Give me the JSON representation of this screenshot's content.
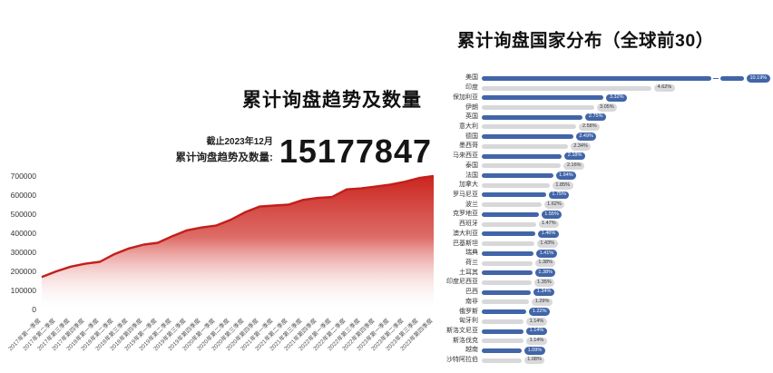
{
  "colors": {
    "bar_blue": "#4165a8",
    "bar_gray": "#d8d8da",
    "badge_gray_bg": "#d9d9db",
    "badge_gray_text": "#333333",
    "area_red": "#cb241f",
    "area_red_line": "#c21f1a"
  },
  "chart_data": [
    {
      "type": "area",
      "title": "累计询盘趋势及数量",
      "annotations": {
        "asof": "截止2023年12月",
        "total_label": "累计询盘趋势及数量:",
        "total_value": "15177847"
      },
      "x": [
        "2017年第一季度",
        "2017年第二季度",
        "2017年第三季度",
        "2017年第四季度",
        "2018年第一季度",
        "2018年第二季度",
        "2018年第三季度",
        "2018年第四季度",
        "2019年第一季度",
        "2019年第二季度",
        "2019年第三季度",
        "2019年第四季度",
        "2020年第一季度",
        "2020年第二季度",
        "2020年第三季度",
        "2020年第四季度",
        "2021年第一季度",
        "2021年第二季度",
        "2021年第三季度",
        "2021年第四季度",
        "2022年第一季度",
        "2022年第二季度",
        "2022年第三季度",
        "2022年第四季度",
        "2023年第一季度",
        "2023年第二季度",
        "2023年第三季度",
        "2023年第四季度"
      ],
      "values": [
        170000,
        200000,
        225000,
        240000,
        250000,
        290000,
        320000,
        340000,
        350000,
        385000,
        415000,
        430000,
        440000,
        470000,
        510000,
        540000,
        545000,
        550000,
        575000,
        585000,
        590000,
        630000,
        635000,
        645000,
        655000,
        670000,
        690000,
        700000
      ],
      "ylim": [
        0,
        700000
      ],
      "yticks": [
        700000,
        600000,
        500000,
        400000,
        300000,
        200000,
        100000,
        0
      ],
      "grid": false,
      "legend": "none"
    },
    {
      "type": "bar",
      "orientation": "horizontal",
      "title": "累计询盘国家分布（全球前30）",
      "unit": "%",
      "categories": [
        "美国",
        "印度",
        "保加利亚",
        "伊朗",
        "英国",
        "意大利",
        "德国",
        "墨西哥",
        "马来西亚",
        "泰国",
        "法国",
        "加拿大",
        "罗马尼亚",
        "波兰",
        "克罗地亚",
        "西班牙",
        "澳大利亚",
        "巴基斯坦",
        "瑞典",
        "荷兰",
        "土耳其",
        "印度尼西亚",
        "巴西",
        "南非",
        "俄罗斯",
        "匈牙利",
        "斯洛文尼亚",
        "斯洛伐克",
        "越南",
        "沙特阿拉伯"
      ],
      "values": [
        10.19,
        4.62,
        3.32,
        3.05,
        2.75,
        2.58,
        2.49,
        2.34,
        2.18,
        2.16,
        1.94,
        1.85,
        1.75,
        1.62,
        1.55,
        1.47,
        1.46,
        1.43,
        1.41,
        1.38,
        1.38,
        1.35,
        1.34,
        1.29,
        1.22,
        1.14,
        1.14,
        1.14,
        1.09,
        1.08
      ],
      "labels": [
        "10.19%",
        "4.62%",
        "3.32%",
        "3.05%",
        "2.75%",
        "2.58%",
        "2.49%",
        "2.34%",
        "2.18%",
        "2.16%",
        "1.94%",
        "1.85%",
        "1.75%",
        "1.62%",
        "1.55%",
        "1.47%",
        "1.46%",
        "1.43%",
        "1.41%",
        "1.38%",
        "1.38%",
        "1.35%",
        "1.34%",
        "1.29%",
        "1.22%",
        "1.14%",
        "1.14%",
        "1.14%",
        "1.09%",
        "1.08%"
      ],
      "axis_break_category": "美国"
    }
  ]
}
